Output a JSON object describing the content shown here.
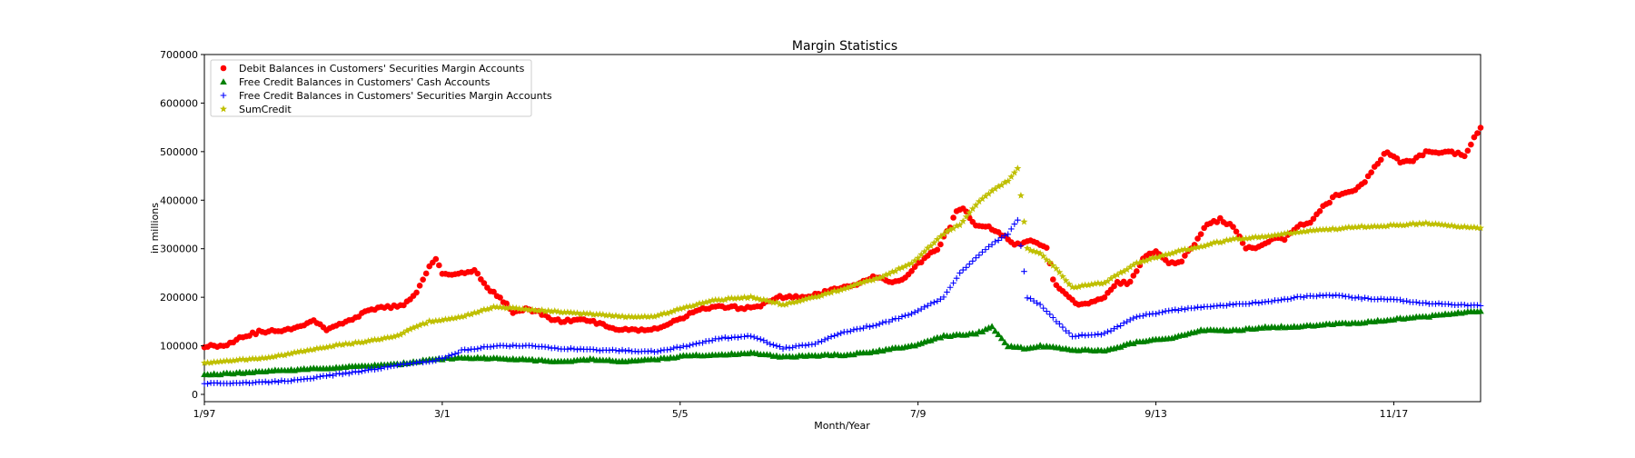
{
  "chart_data": {
    "type": "scatter",
    "title": "Margin Statistics",
    "xlabel": "Month/Year",
    "ylabel": "in millions",
    "x_ticks": [
      {
        "index": 0,
        "label": "1/97"
      },
      {
        "index": 74,
        "label": "3/1"
      },
      {
        "index": 148,
        "label": "5/5"
      },
      {
        "index": 222,
        "label": "7/9"
      },
      {
        "index": 296,
        "label": "9/13"
      },
      {
        "index": 370,
        "label": "11/17"
      }
    ],
    "x_range": [
      0,
      397
    ],
    "ylim": [
      -15000,
      700000
    ],
    "y_ticks": [
      0,
      100000,
      200000,
      300000,
      400000,
      500000,
      600000,
      700000
    ],
    "y_tick_labels": [
      "0",
      "100000",
      "200000",
      "300000",
      "400000",
      "500000",
      "600000",
      "700000"
    ],
    "grid": false,
    "legend_position": "upper-left",
    "series": [
      {
        "name": "Debit Balances in Customers' Securities Margin Accounts",
        "marker": "circle",
        "color": "#ff0000",
        "anchors": [
          [
            0,
            100000
          ],
          [
            6,
            100000
          ],
          [
            12,
            120000
          ],
          [
            18,
            130000
          ],
          [
            24,
            130000
          ],
          [
            30,
            142000
          ],
          [
            34,
            152000
          ],
          [
            38,
            135000
          ],
          [
            42,
            145000
          ],
          [
            46,
            152000
          ],
          [
            50,
            170000
          ],
          [
            56,
            180000
          ],
          [
            62,
            182000
          ],
          [
            66,
            210000
          ],
          [
            70,
            262000
          ],
          [
            72,
            280000
          ],
          [
            74,
            250000
          ],
          [
            80,
            248000
          ],
          [
            84,
            255000
          ],
          [
            88,
            220000
          ],
          [
            92,
            200000
          ],
          [
            96,
            170000
          ],
          [
            100,
            175000
          ],
          [
            104,
            170000
          ],
          [
            108,
            155000
          ],
          [
            112,
            150000
          ],
          [
            116,
            155000
          ],
          [
            120,
            150000
          ],
          [
            124,
            145000
          ],
          [
            128,
            135000
          ],
          [
            134,
            132000
          ],
          [
            140,
            135000
          ],
          [
            146,
            150000
          ],
          [
            152,
            168000
          ],
          [
            156,
            178000
          ],
          [
            162,
            180000
          ],
          [
            168,
            178000
          ],
          [
            174,
            185000
          ],
          [
            178,
            200000
          ],
          [
            186,
            200000
          ],
          [
            192,
            208000
          ],
          [
            198,
            220000
          ],
          [
            204,
            230000
          ],
          [
            208,
            242000
          ],
          [
            214,
            230000
          ],
          [
            218,
            240000
          ],
          [
            222,
            268000
          ],
          [
            226,
            290000
          ],
          [
            228,
            300000
          ],
          [
            232,
            345000
          ],
          [
            234,
            380000
          ],
          [
            236,
            385000
          ],
          [
            240,
            345000
          ],
          [
            244,
            345000
          ],
          [
            248,
            330000
          ],
          [
            252,
            310000
          ],
          [
            258,
            315000
          ],
          [
            262,
            300000
          ],
          [
            264,
            235000
          ],
          [
            268,
            205000
          ],
          [
            272,
            185000
          ],
          [
            276,
            190000
          ],
          [
            280,
            200000
          ],
          [
            284,
            230000
          ],
          [
            288,
            230000
          ],
          [
            292,
            280000
          ],
          [
            296,
            295000
          ],
          [
            300,
            270000
          ],
          [
            304,
            275000
          ],
          [
            308,
            310000
          ],
          [
            312,
            350000
          ],
          [
            316,
            360000
          ],
          [
            320,
            345000
          ],
          [
            324,
            300000
          ],
          [
            328,
            305000
          ],
          [
            332,
            320000
          ],
          [
            336,
            320000
          ],
          [
            340,
            345000
          ],
          [
            344,
            355000
          ],
          [
            348,
            385000
          ],
          [
            352,
            410000
          ],
          [
            356,
            415000
          ],
          [
            360,
            430000
          ],
          [
            364,
            470000
          ],
          [
            368,
            500000
          ],
          [
            372,
            480000
          ],
          [
            376,
            480000
          ],
          [
            380,
            500000
          ],
          [
            384,
            500000
          ],
          [
            388,
            500000
          ],
          [
            392,
            490000
          ],
          [
            396,
            540000
          ],
          [
            397,
            550000
          ]
        ]
      },
      {
        "name": "Free Credit Balances in Customers' Cash Accounts",
        "marker": "triangle",
        "color": "#008000",
        "anchors": [
          [
            0,
            40000
          ],
          [
            20,
            48000
          ],
          [
            40,
            55000
          ],
          [
            60,
            62000
          ],
          [
            70,
            72000
          ],
          [
            80,
            75000
          ],
          [
            90,
            75000
          ],
          [
            100,
            72000
          ],
          [
            110,
            68000
          ],
          [
            120,
            72000
          ],
          [
            130,
            68000
          ],
          [
            140,
            72000
          ],
          [
            150,
            80000
          ],
          [
            160,
            82000
          ],
          [
            170,
            85000
          ],
          [
            180,
            78000
          ],
          [
            190,
            80000
          ],
          [
            200,
            82000
          ],
          [
            210,
            90000
          ],
          [
            220,
            100000
          ],
          [
            230,
            120000
          ],
          [
            240,
            125000
          ],
          [
            245,
            140000
          ],
          [
            250,
            100000
          ],
          [
            255,
            95000
          ],
          [
            260,
            100000
          ],
          [
            270,
            92000
          ],
          [
            280,
            90000
          ],
          [
            290,
            108000
          ],
          [
            300,
            115000
          ],
          [
            310,
            132000
          ],
          [
            320,
            132000
          ],
          [
            330,
            138000
          ],
          [
            340,
            140000
          ],
          [
            350,
            145000
          ],
          [
            360,
            148000
          ],
          [
            370,
            155000
          ],
          [
            380,
            160000
          ],
          [
            390,
            168000
          ],
          [
            397,
            172000
          ]
        ]
      },
      {
        "name": "Free Credit Balances in Customers' Securities Margin Accounts",
        "marker": "plus",
        "color": "#0000ff",
        "anchors": [
          [
            0,
            22000
          ],
          [
            20,
            25000
          ],
          [
            30,
            30000
          ],
          [
            40,
            40000
          ],
          [
            50,
            48000
          ],
          [
            60,
            60000
          ],
          [
            70,
            68000
          ],
          [
            75,
            75000
          ],
          [
            80,
            90000
          ],
          [
            90,
            100000
          ],
          [
            100,
            100000
          ],
          [
            110,
            95000
          ],
          [
            120,
            92000
          ],
          [
            130,
            90000
          ],
          [
            140,
            88000
          ],
          [
            150,
            100000
          ],
          [
            160,
            115000
          ],
          [
            170,
            120000
          ],
          [
            180,
            95000
          ],
          [
            190,
            105000
          ],
          [
            200,
            130000
          ],
          [
            210,
            145000
          ],
          [
            220,
            165000
          ],
          [
            230,
            200000
          ],
          [
            235,
            250000
          ],
          [
            240,
            280000
          ],
          [
            245,
            310000
          ],
          [
            250,
            330000
          ],
          [
            253,
            360000
          ],
          [
            256,
            200000
          ],
          [
            260,
            185000
          ],
          [
            265,
            150000
          ],
          [
            270,
            120000
          ],
          [
            280,
            125000
          ],
          [
            290,
            160000
          ],
          [
            300,
            172000
          ],
          [
            310,
            180000
          ],
          [
            320,
            185000
          ],
          [
            330,
            190000
          ],
          [
            340,
            200000
          ],
          [
            350,
            205000
          ],
          [
            360,
            198000
          ],
          [
            370,
            195000
          ],
          [
            380,
            188000
          ],
          [
            390,
            185000
          ],
          [
            397,
            182000
          ]
        ]
      },
      {
        "name": "SumCredit",
        "marker": "star",
        "color": "#bfbf00",
        "anchors": [
          [
            0,
            65000
          ],
          [
            20,
            75000
          ],
          [
            40,
            100000
          ],
          [
            50,
            108000
          ],
          [
            60,
            120000
          ],
          [
            66,
            140000
          ],
          [
            70,
            150000
          ],
          [
            80,
            160000
          ],
          [
            90,
            180000
          ],
          [
            100,
            175000
          ],
          [
            110,
            170000
          ],
          [
            120,
            165000
          ],
          [
            130,
            160000
          ],
          [
            140,
            160000
          ],
          [
            150,
            180000
          ],
          [
            160,
            195000
          ],
          [
            170,
            200000
          ],
          [
            180,
            185000
          ],
          [
            190,
            200000
          ],
          [
            200,
            220000
          ],
          [
            210,
            240000
          ],
          [
            220,
            270000
          ],
          [
            230,
            330000
          ],
          [
            235,
            350000
          ],
          [
            240,
            390000
          ],
          [
            245,
            420000
          ],
          [
            250,
            440000
          ],
          [
            253,
            465000
          ],
          [
            256,
            300000
          ],
          [
            260,
            290000
          ],
          [
            265,
            260000
          ],
          [
            270,
            220000
          ],
          [
            280,
            230000
          ],
          [
            290,
            270000
          ],
          [
            300,
            290000
          ],
          [
            310,
            305000
          ],
          [
            320,
            320000
          ],
          [
            330,
            325000
          ],
          [
            340,
            335000
          ],
          [
            350,
            340000
          ],
          [
            360,
            345000
          ],
          [
            370,
            348000
          ],
          [
            380,
            352000
          ],
          [
            390,
            345000
          ],
          [
            397,
            342000
          ]
        ]
      }
    ]
  }
}
